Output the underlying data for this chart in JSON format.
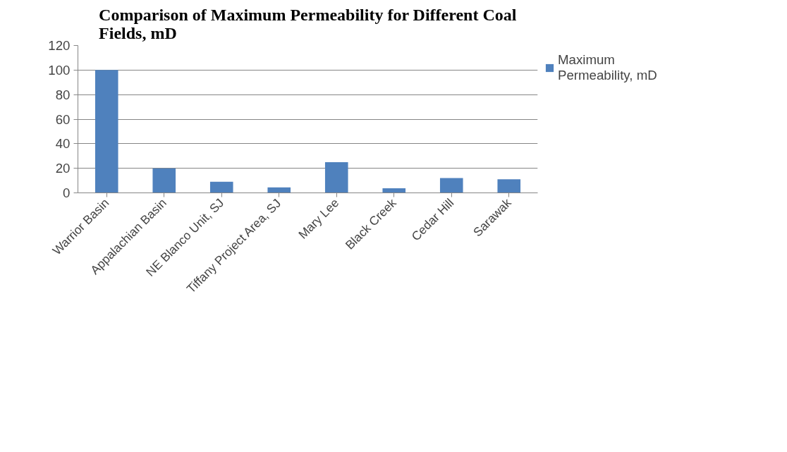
{
  "chart_data": {
    "type": "bar",
    "title": "Comparison of Maximum Permeability for Different Coal\nFields, mD",
    "categories": [
      "Warrior Basin",
      "Appalachian Basin",
      "NE Blanco Unit, SJ",
      "Tiffany Project Area, SJ",
      "Mary Lee",
      "Black Creek",
      "Cedar Hill",
      "Sarawak"
    ],
    "series": [
      {
        "name": "Maximum Permeability, mD",
        "color": "#4f81bd",
        "values": [
          100,
          20,
          9,
          4.5,
          25,
          3.7,
          12,
          11
        ]
      }
    ],
    "ylim": [
      0,
      120
    ],
    "yticks": [
      0,
      20,
      40,
      60,
      80,
      100,
      120
    ],
    "grid": "y",
    "legend": "right"
  }
}
